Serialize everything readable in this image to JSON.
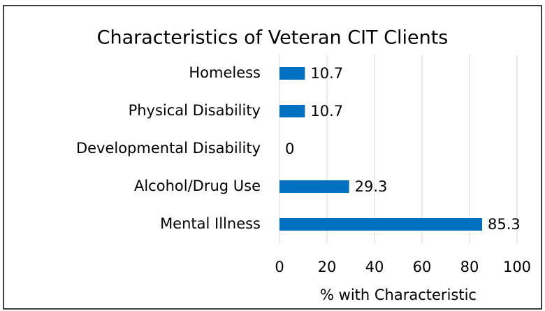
{
  "chart_data": {
    "type": "bar",
    "orientation": "horizontal",
    "title": "Characteristics of Veteran CIT Clients",
    "x_label": "% with Characteristic",
    "categories": [
      "Homeless",
      "Physical Disability",
      "Developmental Disability",
      "Alcohol/Drug Use",
      "Mental Illness"
    ],
    "values": [
      10.7,
      10.7,
      0,
      29.3,
      85.3
    ],
    "color": "#0070c0",
    "xlim": [
      0,
      100
    ],
    "xticks": [
      0,
      20,
      40,
      60,
      80,
      100
    ],
    "grid": true
  }
}
